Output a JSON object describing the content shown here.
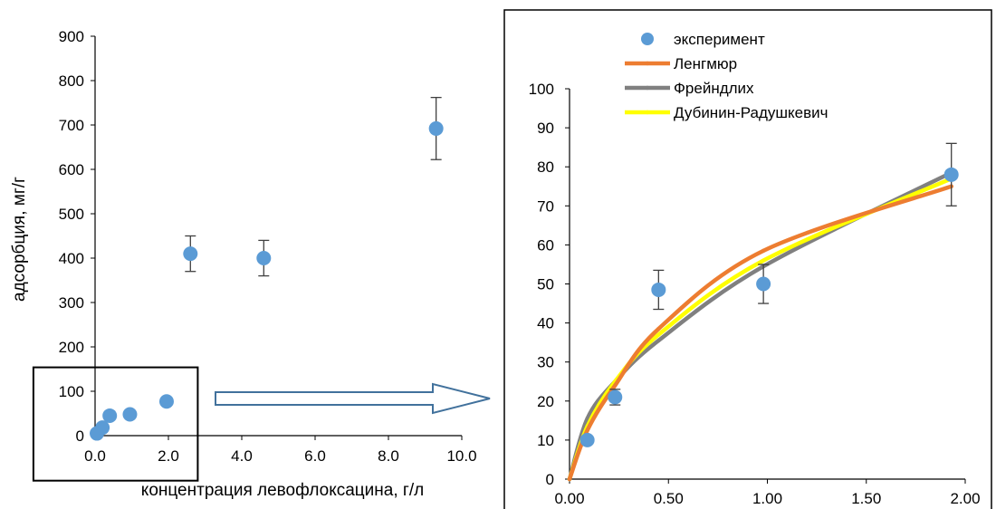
{
  "colors": {
    "experiment": "#5b9bd5",
    "langmuir": "#ed7d31",
    "freundlich": "#808080",
    "dubinin": "#ffff00",
    "axis": "#000000",
    "arrow_outline": "#41719c",
    "error_bar": "#404040"
  },
  "chart_data": [
    {
      "type": "scatter",
      "xlabel": "концентрация левофлоксацина, г/л",
      "ylabel": "адсорбция, мг/г",
      "xlim": [
        0,
        10
      ],
      "ylim": [
        0,
        900
      ],
      "x_ticks": [
        "0.0",
        "2.0",
        "4.0",
        "6.0",
        "8.0",
        "10.0"
      ],
      "y_ticks": [
        "0",
        "100",
        "200",
        "300",
        "400",
        "500",
        "600",
        "700",
        "800",
        "900"
      ],
      "grid": false,
      "series": [
        {
          "points": [
            {
              "x": 0.05,
              "y": 5,
              "err": 0
            },
            {
              "x": 0.2,
              "y": 18,
              "err": 0
            },
            {
              "x": 0.4,
              "y": 45,
              "err": 0
            },
            {
              "x": 0.95,
              "y": 48,
              "err": 0
            },
            {
              "x": 1.95,
              "y": 77,
              "err": 0
            },
            {
              "x": 2.6,
              "y": 410,
              "err": 40
            },
            {
              "x": 4.6,
              "y": 400,
              "err": 40
            },
            {
              "x": 9.3,
              "y": 692,
              "err": 70
            }
          ]
        }
      ],
      "zoom_region": {
        "xlim": [
          -0.2,
          2.8
        ],
        "ylim": [
          -30,
          160
        ]
      }
    },
    {
      "type": "scatter",
      "xlim": [
        0,
        2.0
      ],
      "ylim": [
        0,
        100
      ],
      "x_ticks": [
        "0.00",
        "0.50",
        "1.00",
        "1.50",
        "2.00"
      ],
      "y_ticks": [
        "0",
        "10",
        "20",
        "30",
        "40",
        "50",
        "60",
        "70",
        "80",
        "90",
        "100"
      ],
      "grid": false,
      "legend_position": "top-left",
      "series": [
        {
          "name": "эксперимент",
          "kind": "points",
          "points": [
            {
              "x": 0.09,
              "y": 10,
              "err": 0
            },
            {
              "x": 0.23,
              "y": 21,
              "err": 2
            },
            {
              "x": 0.45,
              "y": 48.5,
              "err": 5
            },
            {
              "x": 0.98,
              "y": 50,
              "err": 5
            },
            {
              "x": 1.93,
              "y": 78,
              "err": 8
            }
          ]
        },
        {
          "name": "Ленгмюр",
          "kind": "line",
          "x": [
            0,
            0.09,
            0.23,
            0.45,
            0.98,
            1.93
          ],
          "y": [
            0,
            12.5,
            24,
            38.5,
            58.5,
            75
          ]
        },
        {
          "name": "Фрейндлих",
          "kind": "line",
          "x": [
            0,
            0.09,
            0.23,
            0.45,
            0.98,
            1.93
          ],
          "y": [
            0,
            15.5,
            25,
            35.5,
            54.5,
            78.5
          ]
        },
        {
          "name": "Дубинин-Радушкевич",
          "kind": "line",
          "x": [
            0,
            0.09,
            0.23,
            0.45,
            0.98,
            1.93
          ],
          "y": [
            0,
            13.5,
            25,
            37,
            56,
            77
          ]
        }
      ]
    }
  ]
}
